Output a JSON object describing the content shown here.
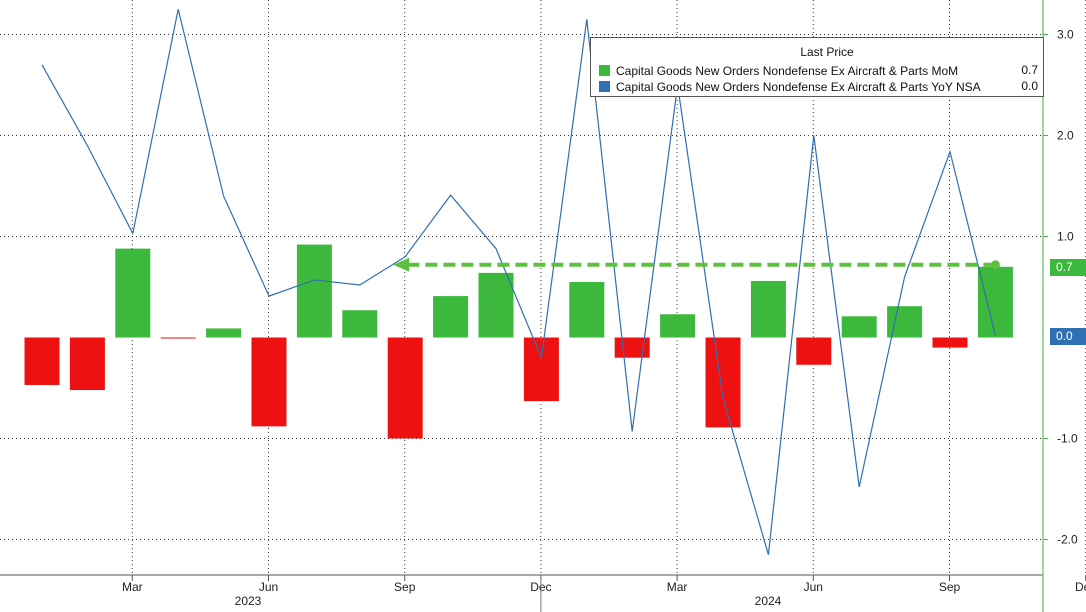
{
  "chart_data": {
    "type": "bar",
    "legend_placement": "top-right",
    "legend_title": "Last Price",
    "x_tick_labels": [
      "Mar",
      "Jun",
      "Sep",
      "Dec",
      "Mar",
      "Jun",
      "Sep",
      "Dec"
    ],
    "year_labels": [
      "2023",
      "2024"
    ],
    "y_ticks": [
      -2.0,
      -1.0,
      1.0,
      2.0,
      3.0
    ],
    "y_tick_labels": [
      "-2.0",
      "-1.0",
      "1.0",
      "2.0",
      "3.0"
    ],
    "ylim": [
      -2.35,
      3.35
    ],
    "grid": true,
    "months": [
      "2023-01",
      "2023-02",
      "2023-03",
      "2023-04",
      "2023-05",
      "2023-06",
      "2023-07",
      "2023-08",
      "2023-09",
      "2023-10",
      "2023-11",
      "2023-12",
      "2024-01",
      "2024-02",
      "2024-03",
      "2024-04",
      "2024-05",
      "2024-06",
      "2024-07",
      "2024-08",
      "2024-09",
      "2024-10",
      "2024-11"
    ],
    "series": [
      {
        "name": "Capital Goods New Orders Nondefense Ex Aircraft & Parts MoM",
        "type": "bar",
        "color": "#3cb83c",
        "negative_color": "#ee1111",
        "last_value": "0.7",
        "values": [
          -0.47,
          -0.52,
          0.88,
          -0.01,
          0.09,
          -0.88,
          0.92,
          0.27,
          -1.0,
          0.41,
          0.64,
          -0.63,
          0.55,
          -0.2,
          0.23,
          -0.89,
          0.56,
          -0.27,
          0.21,
          0.31,
          -0.1,
          0.7
        ]
      },
      {
        "name": "Capital Goods New Orders Nondefense Ex Aircraft & Parts YoY NSA",
        "type": "line",
        "color": "#2f6fb3",
        "last_value": "0.0",
        "values": [
          2.7,
          1.9,
          1.03,
          3.25,
          1.4,
          0.41,
          0.57,
          0.52,
          0.8,
          1.41,
          0.88,
          -0.2,
          3.15,
          -0.93,
          2.5,
          -0.6,
          -2.15,
          2.0,
          -1.48,
          0.6,
          1.84,
          0.02
        ]
      }
    ],
    "annotation": {
      "type": "dashed-arrow",
      "color": "#5cc23d",
      "value": 0.72,
      "from_month": "2024-10",
      "to_month": "2023-09"
    }
  }
}
